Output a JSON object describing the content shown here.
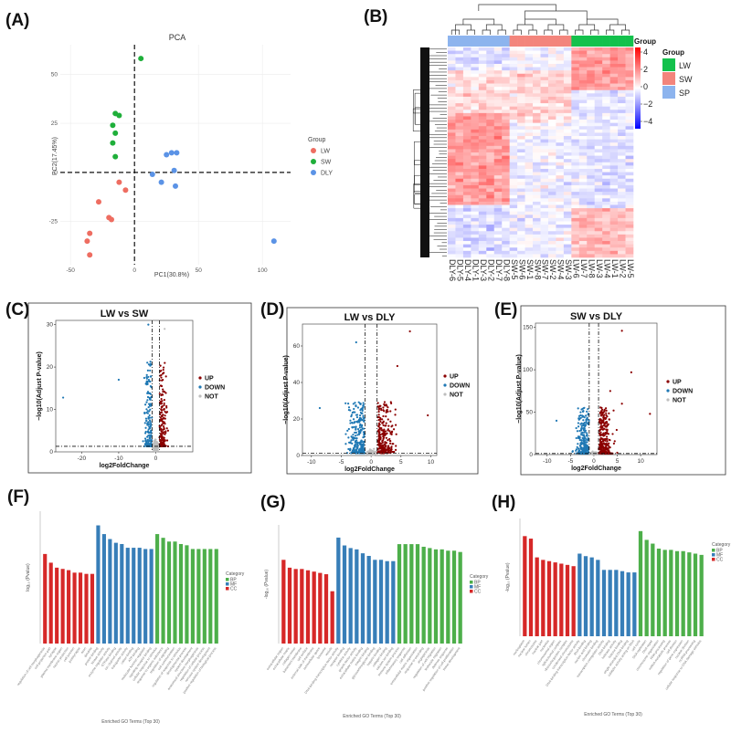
{
  "panel_labels": [
    "(A)",
    "(B)",
    "(C)",
    "(D)",
    "(E)",
    "(F)",
    "(G)",
    "(H)"
  ],
  "colors": {
    "LW": "#EE6D61",
    "SW": "#1FAF3A",
    "DLY": "#5B93E6",
    "hm_LW": "#13C14C",
    "hm_SW": "#F3857C",
    "hm_SP": "#8DB4EE",
    "up": "#8B0000",
    "down": "#1F78B4",
    "not": "#BEBEBE",
    "BP": "#4DAF4A",
    "MF": "#377EB8",
    "CC": "#D62828"
  },
  "chart_data": [
    {
      "panel": "(A)",
      "type": "scatter",
      "title": "PCA",
      "xlabel": "PC1(30.8%)",
      "ylabel": "PC2(17.45%)",
      "xlim": [
        -58,
        122
      ],
      "ylim": [
        -47,
        65
      ],
      "xticks": [
        -50,
        0,
        50,
        100
      ],
      "yticks": [
        -25,
        0,
        25,
        50
      ],
      "legend_title": "Group",
      "series": [
        {
          "name": "LW",
          "color_key": "LW",
          "points": [
            [
              -28,
              -15
            ],
            [
              -35,
              -31
            ],
            [
              -37,
              -35
            ],
            [
              -35,
              -42
            ],
            [
              -20,
              -23
            ],
            [
              -18,
              -24
            ],
            [
              -12,
              -5
            ],
            [
              -7,
              -9
            ]
          ]
        },
        {
          "name": "SW",
          "color_key": "SW",
          "points": [
            [
              5,
              58
            ],
            [
              -15,
              30
            ],
            [
              -12,
              29
            ],
            [
              -17,
              24
            ],
            [
              -15,
              20
            ],
            [
              -17,
              15
            ],
            [
              -15,
              8
            ]
          ]
        },
        {
          "name": "DLY",
          "color_key": "DLY",
          "points": [
            [
              25,
              9
            ],
            [
              29,
              10
            ],
            [
              33,
              10
            ],
            [
              31,
              1
            ],
            [
              14,
              -1
            ],
            [
              21,
              -5
            ],
            [
              32,
              -7
            ],
            [
              109,
              -35
            ]
          ]
        }
      ]
    },
    {
      "panel": "(B)",
      "type": "heatmap",
      "column_labels": [
        "DLY-6",
        "DLY-5",
        "DLY-4",
        "DLY-1",
        "DLY-3",
        "DLY-2",
        "DLY-7",
        "DLY-8",
        "SW-5",
        "SW-6",
        "SW-1",
        "SW-8",
        "SW-7",
        "SW-2",
        "SW-4",
        "SW-3",
        "LW-6",
        "LW-7",
        "LW-8",
        "LW-3",
        "LW-4",
        "LW-1",
        "LW-2",
        "LW-5"
      ],
      "column_groups": [
        "SP",
        "SP",
        "SP",
        "SP",
        "SP",
        "SP",
        "SP",
        "SP",
        "SW",
        "SW",
        "SW",
        "SW",
        "SW",
        "SW",
        "SW",
        "SW",
        "LW",
        "LW",
        "LW",
        "LW",
        "LW",
        "LW",
        "LW",
        "LW"
      ],
      "scale_title": "Group",
      "scale_ticks": [
        "4",
        "2",
        "0",
        "−2",
        "−4"
      ],
      "legend_title": "Group",
      "legend": [
        {
          "name": "LW",
          "color_key": "hm_LW"
        },
        {
          "name": "SW",
          "color_key": "hm_SW"
        },
        {
          "name": "SP",
          "color_key": "hm_SP"
        }
      ]
    },
    {
      "panel": "(C)",
      "type": "scatter",
      "subtype": "volcano",
      "title": "LW vs SW",
      "xlabel": "log2FoldChange",
      "ylabel": "−log10(Adjust P-value)",
      "xlim": [
        -27,
        10
      ],
      "ylim": [
        0,
        31
      ],
      "xticks": [
        -20,
        -10,
        0
      ],
      "yticks": [
        0,
        10,
        20,
        30
      ],
      "fc_threshold": 1,
      "p_line": 1.3,
      "spread": {
        "down_x": 4.5,
        "up_x": 4,
        "max_y": 20,
        "n_down": 180,
        "n_up": 180,
        "n_not": 250
      },
      "outliers": [
        {
          "x": -25,
          "y": 12.8,
          "cls": "down"
        },
        {
          "x": 2.4,
          "y": 29,
          "cls": "not"
        },
        {
          "x": -2,
          "y": 30,
          "cls": "down"
        },
        {
          "x": -10,
          "y": 17,
          "cls": "down"
        }
      ],
      "legend": [
        "UP",
        "DOWN",
        "NOT"
      ]
    },
    {
      "panel": "(D)",
      "type": "scatter",
      "subtype": "volcano",
      "title": "LW vs DLY",
      "xlabel": "log2FoldChange",
      "ylabel": "−log10(Adjust P-value)",
      "xlim": [
        -11.5,
        11
      ],
      "ylim": [
        0,
        72
      ],
      "xticks": [
        -10,
        -5,
        0,
        5,
        10
      ],
      "yticks": [
        0,
        20,
        40,
        60
      ],
      "fc_threshold": 1,
      "p_line": 1.3,
      "spread": {
        "down_x": 6,
        "up_x": 6.5,
        "max_y": 28,
        "n_down": 260,
        "n_up": 260,
        "n_not": 280
      },
      "outliers": [
        {
          "x": 6.5,
          "y": 68,
          "cls": "up"
        },
        {
          "x": 4.4,
          "y": 49,
          "cls": "up"
        },
        {
          "x": -8.6,
          "y": 26,
          "cls": "down"
        },
        {
          "x": 9.5,
          "y": 22,
          "cls": "up"
        },
        {
          "x": -2.5,
          "y": 62,
          "cls": "down"
        }
      ],
      "legend": [
        "UP",
        "DOWN",
        "NOT"
      ]
    },
    {
      "panel": "(E)",
      "type": "scatter",
      "subtype": "volcano",
      "title": "SW vs DLY",
      "xlabel": "log2FoldChange",
      "ylabel": "−log10(Adjust P-value)",
      "xlim": [
        -12.5,
        13.5
      ],
      "ylim": [
        0,
        155
      ],
      "xticks": [
        -10,
        -5,
        0,
        5,
        10
      ],
      "yticks": [
        0,
        50,
        100,
        150
      ],
      "fc_threshold": 1,
      "p_line": 1.3,
      "spread": {
        "down_x": 6,
        "up_x": 7,
        "max_y": 55,
        "n_down": 240,
        "n_up": 260,
        "n_not": 260
      },
      "outliers": [
        {
          "x": 6,
          "y": 146,
          "cls": "up"
        },
        {
          "x": 8,
          "y": 97,
          "cls": "up"
        },
        {
          "x": 3.5,
          "y": 75,
          "cls": "up"
        },
        {
          "x": 6,
          "y": 60,
          "cls": "up"
        },
        {
          "x": 12,
          "y": 48,
          "cls": "up"
        },
        {
          "x": -8,
          "y": 40,
          "cls": "down"
        }
      ],
      "legend": [
        "UP",
        "DOWN",
        "NOT"
      ]
    },
    {
      "panel": "(F)",
      "type": "bar",
      "xlabel": "Enriched GO Terms (Top 30)",
      "ylabel": "log₁₀ (Pvalue)",
      "legend_title": "Category",
      "legend": [
        "BP",
        "MF",
        "CC"
      ],
      "groups": [
        {
          "category": "CC",
          "values": [
            7.2,
            6.5,
            6.1,
            6.0,
            5.9,
            5.7,
            5.7,
            5.6,
            5.6
          ]
        },
        {
          "category": "MF",
          "values": [
            9.5,
            8.8,
            8.4,
            8.1,
            8.0,
            7.7,
            7.7,
            7.7,
            7.6,
            7.6
          ]
        },
        {
          "category": "BP",
          "values": [
            8.8,
            8.5,
            8.2,
            8.2,
            8.0,
            7.9,
            7.6,
            7.6,
            7.6,
            7.6,
            7.6
          ]
        }
      ],
      "terms": [
        "regulation of cell morphogenesis",
        "cell projection part",
        "synapse",
        "plasma membrane region",
        "neuron projection",
        "cell junction",
        "postsynapse",
        "axon",
        "dendrite",
        "protein binding",
        "kinase activity",
        "enzyme regulator activity",
        "GTPase binding",
        "ion channel activity",
        "transporter activity",
        "cation binding",
        "ATP binding",
        "molecular function regulator",
        "signaling receptor binding",
        "cellular response to stimulus",
        "response to organic substance",
        "regulation of signaling",
        "cell communication",
        "regulation of response to stimulus",
        "developmental process",
        "system development",
        "anatomical structure morphogenesis",
        "regulation of cellular process",
        "nervous system development",
        "positive regulation of biological process"
      ]
    },
    {
      "panel": "(G)",
      "type": "bar",
      "xlabel": "Enriched GO Terms (Top 30)",
      "ylabel": "-log₁₀ (Pvalue)",
      "legend_title": "Category",
      "legend": [
        "BP",
        "MF",
        "CC"
      ],
      "groups": [
        {
          "category": "CC",
          "values": [
            6.4,
            5.8,
            5.7,
            5.7,
            5.6,
            5.5,
            5.4,
            5.3,
            4.0
          ]
        },
        {
          "category": "MF",
          "values": [
            8.1,
            7.5,
            7.3,
            7.2,
            6.9,
            6.7,
            6.4,
            6.4,
            6.3,
            6.3
          ]
        },
        {
          "category": "BP",
          "values": [
            7.6,
            7.6,
            7.6,
            7.6,
            7.4,
            7.3,
            7.2,
            7.2,
            7.1,
            7.1,
            7.0
          ]
        }
      ],
      "terms": [
        "extracellular region",
        "extracellular matrix",
        "collagen trimer",
        "basement membrane",
        "cell surface",
        "external side of membrane",
        "extracellular space",
        "lysosome",
        "vesicle",
        "DNA-binding transcription factor activity",
        "receptor binding",
        "cytokine activity",
        "growth factor activity",
        "extracellular matrix binding",
        "integrin binding",
        "glycosaminoglycan binding",
        "heparin binding",
        "collagen binding",
        "calcium ion binding",
        "immune system process",
        "inflammatory response",
        "cell adhesion",
        "extracellular matrix organization",
        "response to wounding",
        "angiogenesis",
        "regulation of cell migration",
        "leukocyte migration",
        "defense response",
        "positive regulation of cell proliferation",
        "tissue development"
      ]
    },
    {
      "panel": "(H)",
      "type": "bar",
      "xlabel": "Enriched GO Terms (Top 30)",
      "ylabel": "-log₁₀ (Pvalue)",
      "legend_title": "Category",
      "legend": [
        "BP",
        "MF",
        "CC"
      ],
      "groups": [
        {
          "category": "CC",
          "values": [
            8.0,
            7.8,
            6.3,
            6.1,
            6.0,
            5.9,
            5.8,
            5.7,
            5.6
          ]
        },
        {
          "category": "MF",
          "values": [
            6.6,
            6.4,
            6.3,
            6.1,
            5.3,
            5.3,
            5.3,
            5.2,
            5.1,
            5.1
          ]
        },
        {
          "category": "BP",
          "values": [
            8.4,
            7.7,
            7.4,
            7.0,
            6.9,
            6.9,
            6.8,
            6.8,
            6.7,
            6.6,
            6.5
          ]
        }
      ],
      "terms": [
        "nucleoplasm",
        "nuclear lumen",
        "chromosome",
        "nuclear part",
        "nucleolus",
        "chromosomal region",
        "spliceosomal complex",
        "ribonucleoprotein complex",
        "condensed chromosome",
        "DNA-binding transcription factor activity",
        "RNA binding",
        "nucleic acid binding",
        "chromatin binding",
        "transcription coregulator activity",
        "DNA binding",
        "helicase activity",
        "histone binding",
        "single-stranded DNA binding",
        "catalytic activity acting on RNA",
        "cell cycle",
        "DNA replication",
        "DNA repair",
        "chromosome organization",
        "RNA processing",
        "mRNA metabolic process",
        "cell division",
        "regulation of gene expression",
        "nuclear division",
        "ncRNA processing",
        "cellular response to DNA damage stimulus"
      ]
    }
  ]
}
